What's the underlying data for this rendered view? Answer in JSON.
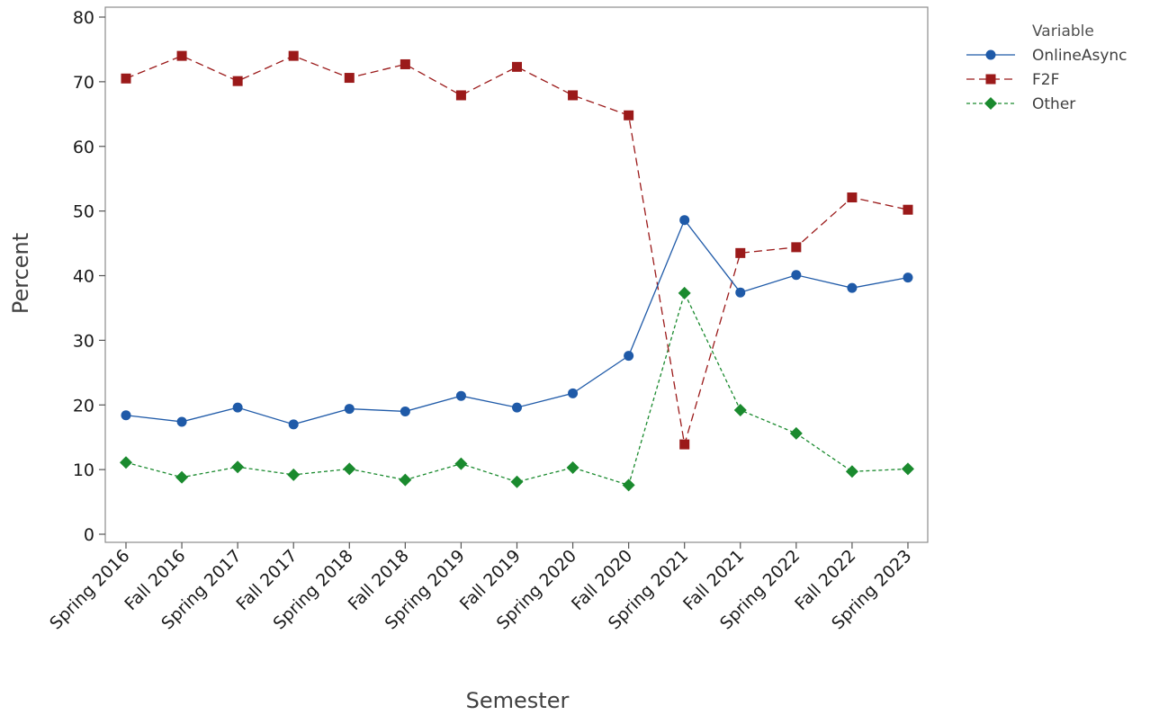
{
  "chart_data": {
    "type": "line",
    "title": "",
    "xlabel": "Semester",
    "ylabel": "Percent",
    "ylim": [
      0,
      80
    ],
    "yticks": [
      0,
      10,
      20,
      30,
      40,
      50,
      60,
      70,
      80
    ],
    "grid": false,
    "legend_title": "Variable",
    "legend_position": "top-right, outside plot",
    "categories": [
      "Spring 2016",
      "Fall 2016",
      "Spring 2017",
      "Fall 2017",
      "Spring 2018",
      "Fall 2018",
      "Spring 2019",
      "Fall 2019",
      "Spring 2020",
      "Fall 2020",
      "Spring 2021",
      "Fall 2021",
      "Spring 2022",
      "Fall 2022",
      "Spring 2023"
    ],
    "series": [
      {
        "name": "OnlineAsync",
        "color": "#1f5aa8",
        "marker": "circle",
        "line_style": "solid",
        "values": [
          18.4,
          17.4,
          19.6,
          17.0,
          19.4,
          19.0,
          21.4,
          19.6,
          21.8,
          27.6,
          48.6,
          37.4,
          40.1,
          38.1,
          39.7
        ]
      },
      {
        "name": "F2F",
        "color": "#9b1a1a",
        "marker": "square",
        "line_style": "long-dash",
        "values": [
          70.5,
          74.0,
          70.1,
          74.0,
          70.6,
          72.7,
          67.9,
          72.3,
          67.9,
          64.8,
          13.9,
          43.5,
          44.4,
          52.1,
          50.2
        ]
      },
      {
        "name": "Other",
        "color": "#1a8a2e",
        "marker": "diamond",
        "line_style": "short-dash",
        "values": [
          11.1,
          8.8,
          10.4,
          9.2,
          10.1,
          8.4,
          10.9,
          8.1,
          10.3,
          7.6,
          37.3,
          19.2,
          15.6,
          9.7,
          10.1
        ]
      }
    ]
  }
}
